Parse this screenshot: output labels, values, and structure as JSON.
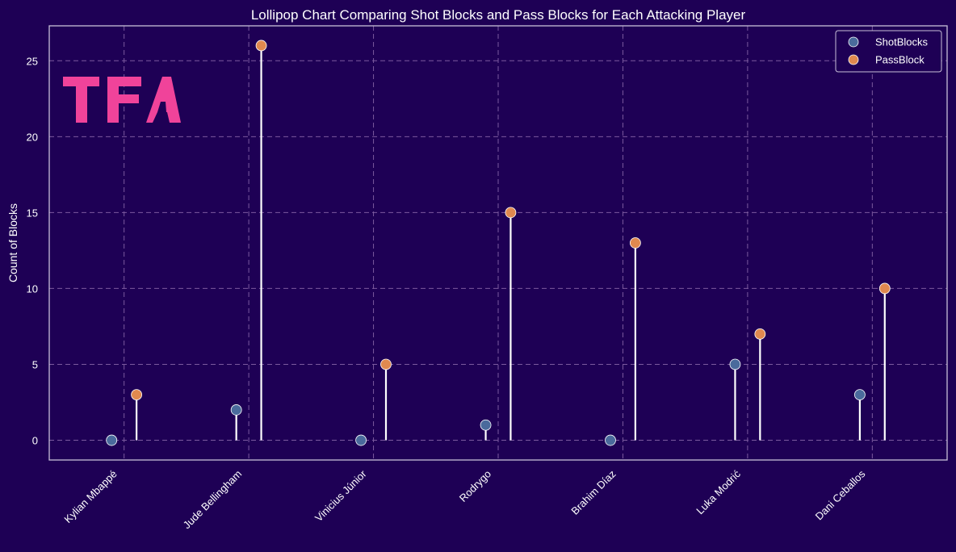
{
  "chart_data": {
    "type": "lollipop",
    "title": "Lollipop Chart Comparing Shot Blocks and Pass Blocks for Each Attacking Player",
    "xlabel": "",
    "ylabel": "Count of Blocks",
    "categories": [
      "Kylian Mbappé",
      "Jude Bellingham",
      "Vinicius Júnior",
      "Rodrygo",
      "Brahim Díaz",
      "Luka Modrić",
      "Dani Ceballos"
    ],
    "series": [
      {
        "name": "ShotBlocks",
        "values": [
          0,
          2,
          0,
          1,
          0,
          5,
          3
        ],
        "color": "#4a6a9c"
      },
      {
        "name": "PassBlock",
        "values": [
          3,
          26,
          5,
          15,
          13,
          7,
          10
        ],
        "color": "#e0894f"
      }
    ],
    "ylim": [
      -1.3,
      27.3
    ],
    "yticks": [
      0,
      5,
      10,
      15,
      20,
      25
    ],
    "grid": true,
    "legend_position": "top-right",
    "stem_color": "#ffffff"
  },
  "logo": {
    "text": "TFA",
    "color": "#f0439a"
  },
  "colors": {
    "background": "#1e0055",
    "text": "#ffffff",
    "grid": "#7b5a9e",
    "frame": "#c8c0d8"
  }
}
